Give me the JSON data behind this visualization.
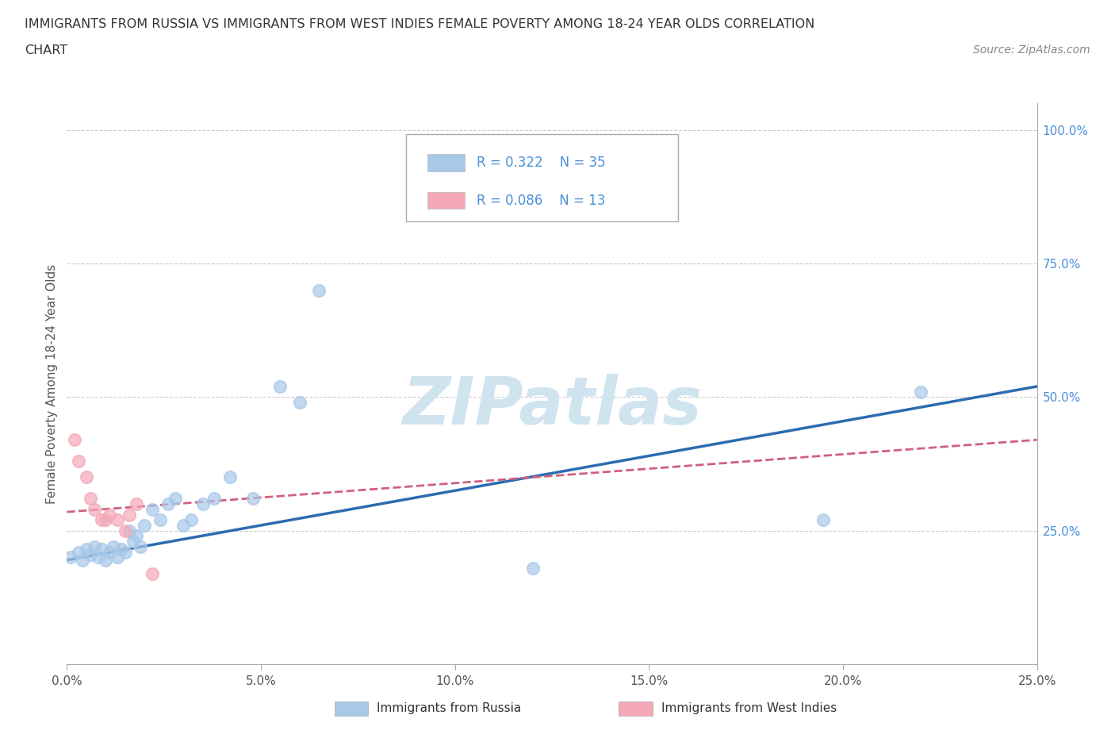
{
  "title_line1": "IMMIGRANTS FROM RUSSIA VS IMMIGRANTS FROM WEST INDIES FEMALE POVERTY AMONG 18-24 YEAR OLDS CORRELATION",
  "title_line2": "CHART",
  "source": "Source: ZipAtlas.com",
  "ylabel": "Female Poverty Among 18-24 Year Olds",
  "xlim": [
    0.0,
    0.25
  ],
  "ylim": [
    0.0,
    1.05
  ],
  "xticks": [
    0.0,
    0.05,
    0.1,
    0.15,
    0.2,
    0.25
  ],
  "yticks_right": [
    0.25,
    0.5,
    0.75,
    1.0
  ],
  "russia_R": 0.322,
  "russia_N": 35,
  "westindies_R": 0.086,
  "westindies_N": 13,
  "russia_color": "#a8c8e8",
  "russia_line_color": "#2b6cb0",
  "westindies_color": "#f4a8b8",
  "westindies_line_color": "#d06080",
  "watermark": "ZIPatlas",
  "watermark_color": "#d0e4f0",
  "background_color": "#ffffff",
  "grid_color": "#cccccc",
  "russia_x": [
    0.001,
    0.003,
    0.004,
    0.005,
    0.006,
    0.007,
    0.008,
    0.009,
    0.01,
    0.011,
    0.012,
    0.013,
    0.014,
    0.015,
    0.016,
    0.017,
    0.018,
    0.019,
    0.02,
    0.022,
    0.024,
    0.026,
    0.028,
    0.03,
    0.032,
    0.035,
    0.038,
    0.042,
    0.048,
    0.055,
    0.06,
    0.065,
    0.12,
    0.195,
    0.22
  ],
  "russia_y": [
    0.2,
    0.21,
    0.195,
    0.215,
    0.205,
    0.22,
    0.2,
    0.215,
    0.195,
    0.21,
    0.22,
    0.2,
    0.215,
    0.21,
    0.25,
    0.23,
    0.24,
    0.22,
    0.26,
    0.29,
    0.27,
    0.3,
    0.31,
    0.26,
    0.27,
    0.3,
    0.31,
    0.35,
    0.31,
    0.52,
    0.49,
    0.7,
    0.18,
    0.27,
    0.51
  ],
  "westindies_x": [
    0.002,
    0.003,
    0.005,
    0.006,
    0.007,
    0.009,
    0.01,
    0.011,
    0.013,
    0.015,
    0.016,
    0.018,
    0.022
  ],
  "westindies_y": [
    0.42,
    0.38,
    0.35,
    0.31,
    0.29,
    0.27,
    0.27,
    0.28,
    0.27,
    0.25,
    0.28,
    0.3,
    0.17
  ],
  "legend_Russia_label": "Immigrants from Russia",
  "legend_WestIndies_label": "Immigrants from West Indies",
  "russia_line_x": [
    0.0,
    0.25
  ],
  "russia_line_y": [
    0.195,
    0.52
  ],
  "westindies_line_x": [
    0.0,
    0.25
  ],
  "westindies_line_y": [
    0.285,
    0.42
  ]
}
